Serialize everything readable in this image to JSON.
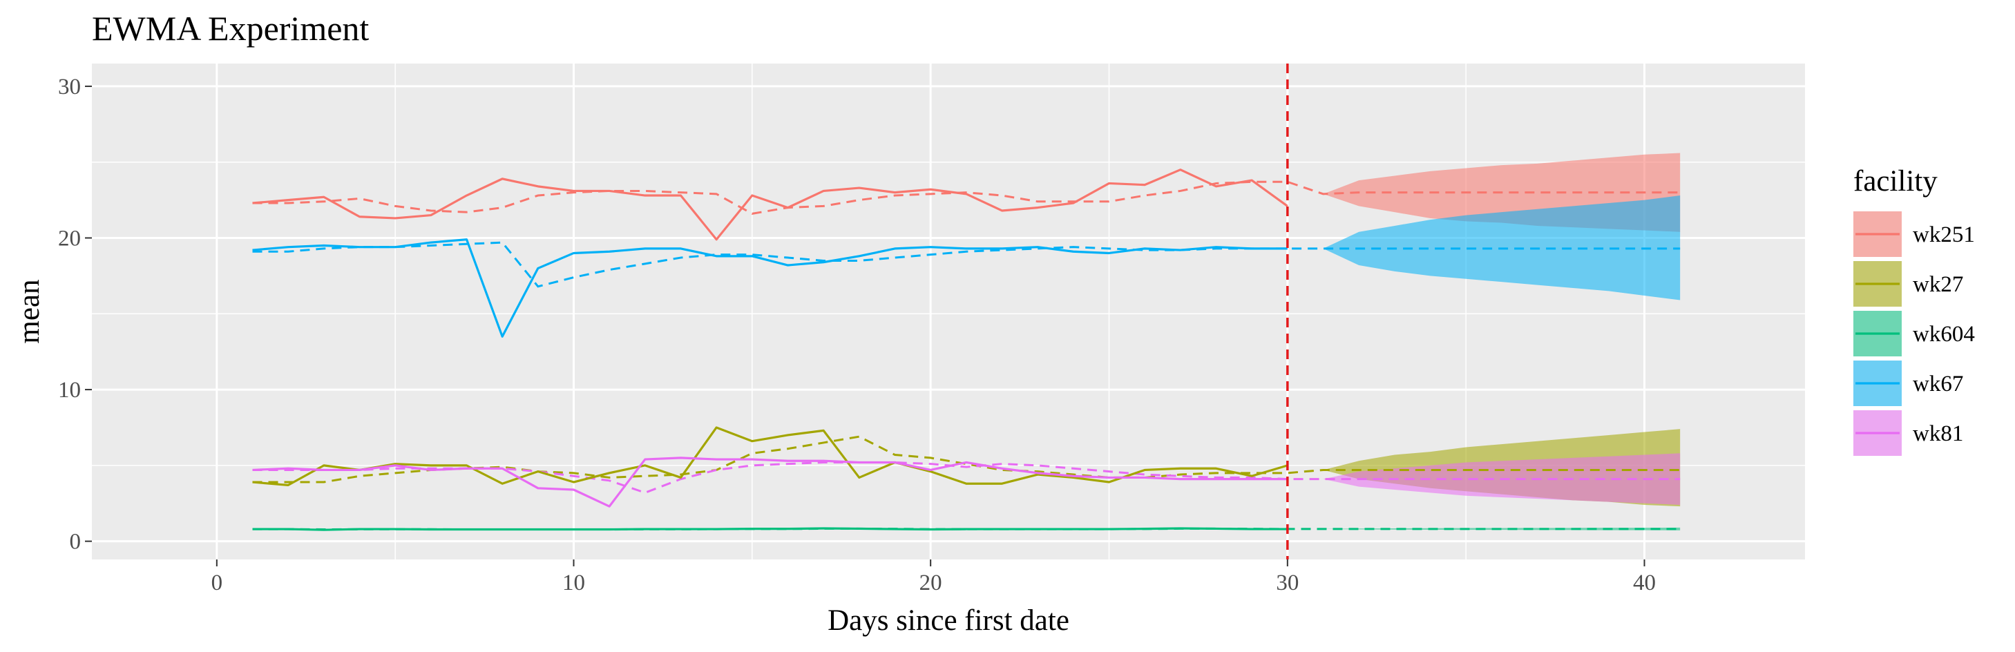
{
  "chart_data": {
    "type": "line",
    "title": "EWMA Experiment",
    "xlabel": "Days since first date",
    "ylabel": "mean",
    "xlim": [
      -3.5,
      44.5
    ],
    "ylim": [
      -1.2,
      31.5
    ],
    "x_ticks": [
      0,
      10,
      20,
      30,
      40
    ],
    "y_ticks": [
      0,
      10,
      20,
      30
    ],
    "grid": true,
    "vline": {
      "x": 30,
      "color": "#e41a1c",
      "style": "dashed"
    },
    "legend": {
      "title": "facility",
      "position": "right"
    },
    "series": [
      {
        "name": "wk251",
        "color": "#f8766d",
        "observed_x": [
          1,
          2,
          3,
          4,
          5,
          6,
          7,
          8,
          9,
          10,
          11,
          12,
          13,
          14,
          15,
          16,
          17,
          18,
          19,
          20,
          21,
          22,
          23,
          24,
          25,
          26,
          27,
          28,
          29,
          30
        ],
        "observed_y": [
          22.3,
          22.5,
          22.7,
          21.4,
          21.3,
          21.5,
          22.8,
          23.9,
          23.4,
          23.1,
          23.1,
          22.8,
          22.8,
          19.9,
          22.8,
          22.0,
          23.1,
          23.3,
          23.0,
          23.2,
          22.9,
          21.8,
          22.0,
          22.3,
          23.6,
          23.5,
          24.5,
          23.4,
          23.8,
          22.1
        ],
        "smoothed_x": [
          1,
          2,
          3,
          4,
          5,
          6,
          7,
          8,
          9,
          10,
          11,
          12,
          13,
          14,
          15,
          16,
          17,
          18,
          19,
          20,
          21,
          22,
          23,
          24,
          25,
          26,
          27,
          28,
          29,
          30,
          31,
          32,
          33,
          34,
          35,
          36,
          37,
          38,
          39,
          40,
          41
        ],
        "smoothed_y": [
          22.3,
          22.3,
          22.4,
          22.6,
          22.1,
          21.8,
          21.7,
          22.0,
          22.8,
          23.0,
          23.1,
          23.1,
          23.0,
          22.9,
          21.6,
          22.0,
          22.1,
          22.5,
          22.8,
          22.9,
          23.0,
          22.8,
          22.4,
          22.4,
          22.4,
          22.8,
          23.1,
          23.6,
          23.7,
          23.7,
          22.9,
          23.0,
          23.0,
          23.0,
          23.0,
          23.0,
          23.0,
          23.0,
          23.0,
          23.0,
          23.0
        ],
        "band_x": [
          31,
          32,
          33,
          34,
          35,
          36,
          37,
          38,
          39,
          40,
          41
        ],
        "band_lower": [
          22.9,
          22.1,
          21.7,
          21.3,
          21.1,
          21.0,
          20.8,
          20.7,
          20.6,
          20.5,
          20.4
        ],
        "band_upper": [
          22.9,
          23.8,
          24.1,
          24.4,
          24.6,
          24.8,
          24.9,
          25.1,
          25.3,
          25.5,
          25.6
        ]
      },
      {
        "name": "wk27",
        "color": "#a3a500",
        "observed_x": [
          1,
          2,
          3,
          4,
          5,
          6,
          7,
          8,
          9,
          10,
          11,
          12,
          13,
          14,
          15,
          16,
          17,
          18,
          19,
          20,
          21,
          22,
          23,
          24,
          25,
          26,
          27,
          28,
          29,
          30
        ],
        "observed_y": [
          3.9,
          3.7,
          5.0,
          4.7,
          5.1,
          5.0,
          5.0,
          3.8,
          4.6,
          3.9,
          4.5,
          5.0,
          4.2,
          7.5,
          6.6,
          7.0,
          7.3,
          4.2,
          5.2,
          4.6,
          3.8,
          3.8,
          4.4,
          4.2,
          3.9,
          4.7,
          4.8,
          4.8,
          4.3,
          5.0
        ],
        "smoothed_x": [
          1,
          2,
          3,
          4,
          5,
          6,
          7,
          8,
          9,
          10,
          11,
          12,
          13,
          14,
          15,
          16,
          17,
          18,
          19,
          20,
          21,
          22,
          23,
          24,
          25,
          26,
          27,
          28,
          29,
          30,
          31,
          32,
          33,
          34,
          35,
          36,
          37,
          38,
          39,
          40,
          41
        ],
        "smoothed_y": [
          3.9,
          3.9,
          3.9,
          4.3,
          4.5,
          4.7,
          4.8,
          4.9,
          4.6,
          4.5,
          4.2,
          4.3,
          4.4,
          4.7,
          5.8,
          6.1,
          6.5,
          6.9,
          5.7,
          5.5,
          5.1,
          4.7,
          4.6,
          4.4,
          4.2,
          4.2,
          4.4,
          4.5,
          4.5,
          4.5,
          4.7,
          4.7,
          4.7,
          4.7,
          4.7,
          4.7,
          4.7,
          4.7,
          4.7,
          4.7,
          4.7
        ],
        "band_x": [
          31,
          32,
          33,
          34,
          35,
          36,
          37,
          38,
          39,
          40,
          41
        ],
        "band_lower": [
          4.7,
          4.1,
          3.8,
          3.5,
          3.3,
          3.1,
          2.9,
          2.7,
          2.6,
          2.4,
          2.3
        ],
        "band_upper": [
          4.7,
          5.3,
          5.7,
          5.9,
          6.2,
          6.4,
          6.6,
          6.8,
          7.0,
          7.2,
          7.4
        ]
      },
      {
        "name": "wk604",
        "color": "#00bf7d",
        "observed_x": [
          1,
          2,
          3,
          4,
          5,
          6,
          7,
          8,
          9,
          10,
          11,
          12,
          13,
          14,
          15,
          16,
          17,
          18,
          19,
          20,
          21,
          22,
          23,
          24,
          25,
          26,
          27,
          28,
          29,
          30
        ],
        "observed_y": [
          0.8,
          0.8,
          0.75,
          0.8,
          0.8,
          0.78,
          0.78,
          0.78,
          0.78,
          0.78,
          0.78,
          0.8,
          0.8,
          0.8,
          0.82,
          0.82,
          0.85,
          0.83,
          0.8,
          0.78,
          0.8,
          0.8,
          0.8,
          0.8,
          0.8,
          0.82,
          0.85,
          0.83,
          0.8,
          0.8
        ],
        "smoothed_x": [
          1,
          2,
          3,
          4,
          5,
          6,
          7,
          8,
          9,
          10,
          11,
          12,
          13,
          14,
          15,
          16,
          17,
          18,
          19,
          20,
          21,
          22,
          23,
          24,
          25,
          26,
          27,
          28,
          29,
          30,
          31,
          32,
          33,
          34,
          35,
          36,
          37,
          38,
          39,
          40,
          41
        ],
        "smoothed_y": [
          0.8,
          0.8,
          0.78,
          0.79,
          0.79,
          0.79,
          0.78,
          0.78,
          0.78,
          0.78,
          0.78,
          0.79,
          0.79,
          0.8,
          0.81,
          0.81,
          0.83,
          0.83,
          0.82,
          0.8,
          0.8,
          0.8,
          0.8,
          0.8,
          0.8,
          0.81,
          0.83,
          0.83,
          0.82,
          0.81,
          0.81,
          0.81,
          0.81,
          0.81,
          0.81,
          0.81,
          0.81,
          0.81,
          0.81,
          0.81,
          0.81
        ],
        "band_x": [
          31,
          32,
          33,
          34,
          35,
          36,
          37,
          38,
          39,
          40,
          41
        ],
        "band_lower": [
          0.81,
          0.78,
          0.77,
          0.76,
          0.75,
          0.75,
          0.74,
          0.74,
          0.73,
          0.73,
          0.72
        ],
        "band_upper": [
          0.81,
          0.84,
          0.85,
          0.86,
          0.87,
          0.87,
          0.88,
          0.88,
          0.89,
          0.89,
          0.9
        ]
      },
      {
        "name": "wk67",
        "color": "#00b0f6",
        "observed_x": [
          1,
          2,
          3,
          4,
          5,
          6,
          7,
          8,
          9,
          10,
          11,
          12,
          13,
          14,
          15,
          16,
          17,
          18,
          19,
          20,
          21,
          22,
          23,
          24,
          25,
          26,
          27,
          28,
          29,
          30
        ],
        "observed_y": [
          19.2,
          19.4,
          19.5,
          19.4,
          19.4,
          19.7,
          19.9,
          13.5,
          18.0,
          19.0,
          19.1,
          19.3,
          19.3,
          18.8,
          18.8,
          18.2,
          18.4,
          18.8,
          19.3,
          19.4,
          19.3,
          19.3,
          19.4,
          19.1,
          19.0,
          19.3,
          19.2,
          19.4,
          19.3,
          19.3
        ],
        "smoothed_x": [
          1,
          2,
          3,
          4,
          5,
          6,
          7,
          8,
          9,
          10,
          11,
          12,
          13,
          14,
          15,
          16,
          17,
          18,
          19,
          20,
          21,
          22,
          23,
          24,
          25,
          26,
          27,
          28,
          29,
          30,
          31,
          32,
          33,
          34,
          35,
          36,
          37,
          38,
          39,
          40,
          41
        ],
        "smoothed_y": [
          19.1,
          19.1,
          19.3,
          19.4,
          19.4,
          19.5,
          19.6,
          19.7,
          16.8,
          17.4,
          17.9,
          18.3,
          18.7,
          18.9,
          18.9,
          18.7,
          18.5,
          18.5,
          18.7,
          18.9,
          19.1,
          19.2,
          19.3,
          19.4,
          19.3,
          19.2,
          19.2,
          19.3,
          19.3,
          19.3,
          19.3,
          19.3,
          19.3,
          19.3,
          19.3,
          19.3,
          19.3,
          19.3,
          19.3,
          19.3,
          19.3
        ],
        "band_x": [
          31,
          32,
          33,
          34,
          35,
          36,
          37,
          38,
          39,
          40,
          41
        ],
        "band_lower": [
          19.3,
          18.2,
          17.8,
          17.5,
          17.3,
          17.1,
          16.9,
          16.7,
          16.5,
          16.2,
          15.9
        ],
        "band_upper": [
          19.3,
          20.4,
          20.8,
          21.2,
          21.5,
          21.7,
          21.9,
          22.1,
          22.3,
          22.5,
          22.8
        ]
      },
      {
        "name": "wk81",
        "color": "#e76bf3",
        "observed_x": [
          1,
          2,
          3,
          4,
          5,
          6,
          7,
          8,
          9,
          10,
          11,
          12,
          13,
          14,
          15,
          16,
          17,
          18,
          19,
          20,
          21,
          22,
          23,
          24,
          25,
          26,
          27,
          28,
          29,
          30
        ],
        "observed_y": [
          4.7,
          4.8,
          4.7,
          4.7,
          5.0,
          4.7,
          4.8,
          4.8,
          3.5,
          3.4,
          2.3,
          5.4,
          5.5,
          5.4,
          5.4,
          5.3,
          5.3,
          5.2,
          5.2,
          4.7,
          5.2,
          4.8,
          4.5,
          4.3,
          4.2,
          4.2,
          4.1,
          4.1,
          4.1,
          4.1
        ],
        "smoothed_x": [
          1,
          2,
          3,
          4,
          5,
          6,
          7,
          8,
          9,
          10,
          11,
          12,
          13,
          14,
          15,
          16,
          17,
          18,
          19,
          20,
          21,
          22,
          23,
          24,
          25,
          26,
          27,
          28,
          29,
          30,
          31,
          32,
          33,
          34,
          35,
          36,
          37,
          38,
          39,
          40,
          41
        ],
        "smoothed_y": [
          4.7,
          4.7,
          4.7,
          4.7,
          4.8,
          4.8,
          4.8,
          4.8,
          4.6,
          4.3,
          4.0,
          3.2,
          4.1,
          4.7,
          5.0,
          5.1,
          5.2,
          5.2,
          5.2,
          5.1,
          4.9,
          5.1,
          5.0,
          4.8,
          4.6,
          4.4,
          4.3,
          4.2,
          4.2,
          4.1,
          4.1,
          4.1,
          4.1,
          4.1,
          4.1,
          4.1,
          4.1,
          4.1,
          4.1,
          4.1,
          4.1
        ],
        "band_x": [
          31,
          32,
          33,
          34,
          35,
          36,
          37,
          38,
          39,
          40,
          41
        ],
        "band_lower": [
          4.1,
          3.6,
          3.4,
          3.2,
          3.0,
          2.9,
          2.8,
          2.7,
          2.6,
          2.5,
          2.4
        ],
        "band_upper": [
          4.1,
          4.6,
          4.8,
          5.0,
          5.2,
          5.3,
          5.4,
          5.5,
          5.6,
          5.7,
          5.8
        ]
      }
    ]
  }
}
